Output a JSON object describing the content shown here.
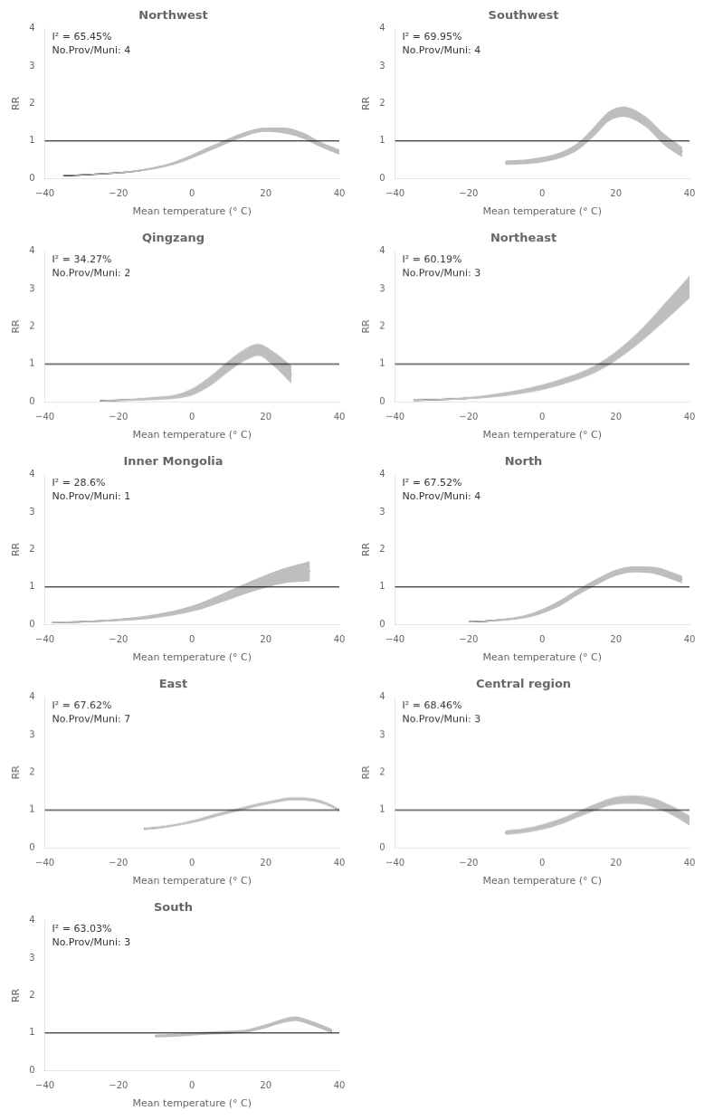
{
  "chart_data": [
    {
      "type": "line",
      "title": "Northwest",
      "annotations": [
        "I² = 65.45%",
        "No.Prov/Muni: 4"
      ],
      "x": [
        -35,
        -25,
        -15,
        -5,
        5,
        15,
        20,
        25,
        30,
        35,
        40
      ],
      "values": [
        0.07,
        0.12,
        0.2,
        0.4,
        0.8,
        1.2,
        1.3,
        1.28,
        1.15,
        0.9,
        0.7
      ],
      "ci": {
        "lower": [
          0.065,
          0.105,
          0.175,
          0.36,
          0.74,
          1.14,
          1.24,
          1.2,
          1.07,
          0.83,
          0.63
        ],
        "upper": [
          0.075,
          0.135,
          0.225,
          0.44,
          0.86,
          1.26,
          1.36,
          1.36,
          1.23,
          0.97,
          0.77
        ],
        "color": "#bebebe"
      },
      "color": "#000000",
      "ref_line": {
        "value": 1,
        "color": "#000000"
      },
      "xlabel": "Mean temperature (° C)",
      "ylabel": "RR",
      "xlim": [
        -40,
        40
      ],
      "ylim": [
        0,
        4
      ],
      "xticks": [
        {
          "value": -40,
          "label": "−40"
        },
        {
          "value": -20,
          "label": "−20"
        },
        0,
        20,
        40
      ],
      "yticks": [
        0,
        1,
        2,
        3,
        4
      ],
      "grid": false
    },
    {
      "type": "line",
      "title": "Southwest",
      "annotations": [
        "I² = 69.95%",
        "No.Prov/Muni: 4"
      ],
      "x": [
        -10,
        -5,
        0,
        5,
        10,
        15,
        18,
        22,
        28,
        33,
        38
      ],
      "values": [
        0.42,
        0.44,
        0.5,
        0.62,
        0.88,
        1.35,
        1.65,
        1.78,
        1.52,
        1.05,
        0.7
      ],
      "ci": {
        "lower": [
          0.36,
          0.38,
          0.43,
          0.54,
          0.78,
          1.22,
          1.52,
          1.64,
          1.38,
          0.9,
          0.56
        ],
        "upper": [
          0.48,
          0.5,
          0.57,
          0.7,
          0.98,
          1.48,
          1.78,
          1.92,
          1.66,
          1.2,
          0.84
        ],
        "color": "#bebebe"
      },
      "color": "#000000",
      "ref_line": {
        "value": 1,
        "color": "#000000"
      },
      "xlabel": "Mean temperature (° C)",
      "ylabel": "RR",
      "xlim": [
        -40,
        40
      ],
      "ylim": [
        0,
        4
      ],
      "xticks": [
        {
          "value": -40,
          "label": "−40"
        },
        {
          "value": -20,
          "label": "−20"
        },
        0,
        20,
        40
      ],
      "yticks": [
        0,
        1,
        2,
        3,
        4
      ],
      "grid": false
    },
    {
      "type": "line",
      "title": "Qingzang",
      "annotations": [
        "I² = 34.27%",
        "No.Prov/Muni: 2"
      ],
      "x": [
        -25,
        -20,
        -15,
        -10,
        -5,
        0,
        5,
        10,
        15,
        18,
        22,
        27
      ],
      "values": [
        0.03,
        0.04,
        0.06,
        0.09,
        0.13,
        0.26,
        0.55,
        0.95,
        1.28,
        1.38,
        1.15,
        0.72
      ],
      "ci": {
        "lower": [
          0.01,
          0.02,
          0.03,
          0.05,
          0.08,
          0.17,
          0.42,
          0.8,
          1.12,
          1.22,
          0.96,
          0.48
        ],
        "upper": [
          0.05,
          0.06,
          0.09,
          0.13,
          0.18,
          0.35,
          0.68,
          1.1,
          1.44,
          1.54,
          1.34,
          0.96
        ],
        "color": "#bebebe"
      },
      "color": "#000000",
      "ref_line": {
        "value": 1,
        "color": "#000000"
      },
      "xlabel": "Mean temperature (° C)",
      "ylabel": "RR",
      "xlim": [
        -40,
        40
      ],
      "ylim": [
        0,
        4
      ],
      "xticks": [
        {
          "value": -40,
          "label": "−40"
        },
        {
          "value": -20,
          "label": "−20"
        },
        0,
        20,
        40
      ],
      "yticks": [
        0,
        1,
        2,
        3,
        4
      ],
      "grid": false
    },
    {
      "type": "line",
      "title": "Northeast",
      "annotations": [
        "I² = 60.19%",
        "No.Prov/Muni: 3"
      ],
      "x": [
        -35,
        -25,
        -15,
        -5,
        5,
        15,
        25,
        35,
        40
      ],
      "values": [
        0.04,
        0.07,
        0.14,
        0.28,
        0.52,
        0.9,
        1.6,
        2.55,
        3.05
      ],
      "ci": {
        "lower": [
          0.025,
          0.05,
          0.1,
          0.22,
          0.44,
          0.8,
          1.45,
          2.3,
          2.75
        ],
        "upper": [
          0.055,
          0.09,
          0.18,
          0.34,
          0.6,
          1.0,
          1.75,
          2.8,
          3.35
        ],
        "color": "#bebebe"
      },
      "color": "#000000",
      "ref_line": {
        "value": 1,
        "color": "#000000"
      },
      "xlabel": "Mean temperature (° C)",
      "ylabel": "RR",
      "xlim": [
        -40,
        40
      ],
      "ylim": [
        0,
        4
      ],
      "xticks": [
        {
          "value": -40,
          "label": "−40"
        },
        {
          "value": -20,
          "label": "−20"
        },
        0,
        20,
        40
      ],
      "yticks": [
        0,
        1,
        2,
        3,
        4
      ],
      "grid": false
    },
    {
      "type": "line",
      "title": "Inner Mongolia",
      "annotations": [
        "I² = 28.6%",
        "No.Prov/Muni: 1"
      ],
      "x": [
        -38,
        -30,
        -20,
        -10,
        0,
        10,
        18,
        25,
        32
      ],
      "values": [
        0.05,
        0.07,
        0.12,
        0.22,
        0.42,
        0.78,
        1.08,
        1.3,
        1.42
      ],
      "ci": {
        "lower": [
          0.03,
          0.05,
          0.09,
          0.17,
          0.34,
          0.66,
          0.92,
          1.1,
          1.15
        ],
        "upper": [
          0.07,
          0.09,
          0.15,
          0.27,
          0.5,
          0.9,
          1.24,
          1.5,
          1.69
        ],
        "color": "#bebebe"
      },
      "color": "#000000",
      "ref_line": {
        "value": 1,
        "color": "#000000"
      },
      "xlabel": "Mean temperature (° C)",
      "ylabel": "RR",
      "xlim": [
        -40,
        40
      ],
      "ylim": [
        0,
        4
      ],
      "xticks": [
        {
          "value": -40,
          "label": "−40"
        },
        {
          "value": -20,
          "label": "−20"
        },
        0,
        20,
        40
      ],
      "yticks": [
        0,
        1,
        2,
        3,
        4
      ],
      "grid": false
    },
    {
      "type": "line",
      "title": "North",
      "annotations": [
        "I² = 67.52%",
        "No.Prov/Muni: 4"
      ],
      "x": [
        -20,
        -15,
        -10,
        -5,
        0,
        5,
        10,
        15,
        20,
        25,
        30,
        38
      ],
      "values": [
        0.07,
        0.09,
        0.13,
        0.2,
        0.35,
        0.58,
        0.88,
        1.15,
        1.38,
        1.47,
        1.45,
        1.2
      ],
      "ci": {
        "lower": [
          0.05,
          0.07,
          0.1,
          0.16,
          0.29,
          0.5,
          0.8,
          1.07,
          1.3,
          1.39,
          1.36,
          1.1
        ],
        "upper": [
          0.09,
          0.11,
          0.16,
          0.24,
          0.41,
          0.66,
          0.96,
          1.23,
          1.46,
          1.55,
          1.54,
          1.3
        ],
        "color": "#bebebe"
      },
      "color": "#000000",
      "ref_line": {
        "value": 1,
        "color": "#000000"
      },
      "xlabel": "Mean temperature (° C)",
      "ylabel": "RR",
      "xlim": [
        -40,
        40
      ],
      "ylim": [
        0,
        4
      ],
      "xticks": [
        {
          "value": -40,
          "label": "−40"
        },
        {
          "value": -20,
          "label": "−20"
        },
        0,
        20,
        40
      ],
      "yticks": [
        0,
        1,
        2,
        3,
        4
      ],
      "grid": false
    },
    {
      "type": "line",
      "title": "East",
      "annotations": [
        "I² = 67.62%",
        "No.Prov/Muni: 7"
      ],
      "x": [
        -13,
        -8,
        -3,
        2,
        7,
        12,
        17,
        22,
        27,
        32,
        37,
        40
      ],
      "values": [
        0.5,
        0.55,
        0.63,
        0.74,
        0.88,
        1.0,
        1.12,
        1.22,
        1.3,
        1.28,
        1.15,
        1.0
      ],
      "ci": {
        "lower": [
          0.47,
          0.52,
          0.6,
          0.7,
          0.84,
          0.96,
          1.08,
          1.18,
          1.26,
          1.24,
          1.11,
          0.97
        ],
        "upper": [
          0.53,
          0.58,
          0.66,
          0.78,
          0.92,
          1.04,
          1.16,
          1.26,
          1.34,
          1.32,
          1.19,
          1.03
        ],
        "color": "#bebebe"
      },
      "color": "#000000",
      "ref_line": {
        "value": 1,
        "color": "#000000"
      },
      "xlabel": "Mean temperature (° C)",
      "ylabel": "RR",
      "xlim": [
        -40,
        40
      ],
      "ylim": [
        0,
        4
      ],
      "xticks": [
        {
          "value": -40,
          "label": "−40"
        },
        {
          "value": -20,
          "label": "−20"
        },
        0,
        20,
        40
      ],
      "yticks": [
        0,
        1,
        2,
        3,
        4
      ],
      "grid": false
    },
    {
      "type": "line",
      "title": "Central region",
      "annotations": [
        "I² = 68.46%",
        "No.Prov/Muni: 3"
      ],
      "x": [
        -10,
        -5,
        0,
        5,
        10,
        15,
        20,
        25,
        30,
        35,
        40
      ],
      "values": [
        0.4,
        0.45,
        0.55,
        0.7,
        0.9,
        1.1,
        1.25,
        1.28,
        1.2,
        1.0,
        0.72
      ],
      "ci": {
        "lower": [
          0.34,
          0.39,
          0.48,
          0.62,
          0.82,
          1.01,
          1.15,
          1.17,
          1.08,
          0.88,
          0.59
        ],
        "upper": [
          0.46,
          0.51,
          0.62,
          0.78,
          0.98,
          1.19,
          1.35,
          1.39,
          1.32,
          1.12,
          0.85
        ],
        "color": "#bebebe"
      },
      "color": "#000000",
      "ref_line": {
        "value": 1,
        "color": "#000000"
      },
      "xlabel": "Mean temperature (° C)",
      "ylabel": "RR",
      "xlim": [
        -40,
        40
      ],
      "ylim": [
        0,
        4
      ],
      "xticks": [
        {
          "value": -40,
          "label": "−40"
        },
        {
          "value": -20,
          "label": "−20"
        },
        0,
        20,
        40
      ],
      "yticks": [
        0,
        1,
        2,
        3,
        4
      ],
      "grid": false
    },
    {
      "type": "line",
      "title": "South",
      "annotations": [
        "I² = 63.03%",
        "No.Prov/Muni: 3"
      ],
      "x": [
        -10,
        -5,
        0,
        5,
        10,
        15,
        20,
        25,
        28,
        32,
        38
      ],
      "values": [
        0.92,
        0.94,
        0.97,
        1.0,
        1.02,
        1.06,
        1.18,
        1.33,
        1.38,
        1.28,
        1.05
      ],
      "ci": {
        "lower": [
          0.88,
          0.9,
          0.93,
          0.96,
          0.98,
          1.02,
          1.13,
          1.27,
          1.32,
          1.22,
          0.99
        ],
        "upper": [
          0.96,
          0.98,
          1.01,
          1.04,
          1.06,
          1.1,
          1.23,
          1.39,
          1.44,
          1.34,
          1.11
        ],
        "color": "#bebebe"
      },
      "color": "#000000",
      "ref_line": {
        "value": 1,
        "color": "#000000"
      },
      "xlabel": "Mean temperature (° C)",
      "ylabel": "RR",
      "xlim": [
        -40,
        40
      ],
      "ylim": [
        0,
        4
      ],
      "xticks": [
        {
          "value": -40,
          "label": "−40"
        },
        {
          "value": -20,
          "label": "−20"
        },
        0,
        20,
        40
      ],
      "yticks": [
        0,
        1,
        2,
        3,
        4
      ],
      "grid": false
    }
  ]
}
